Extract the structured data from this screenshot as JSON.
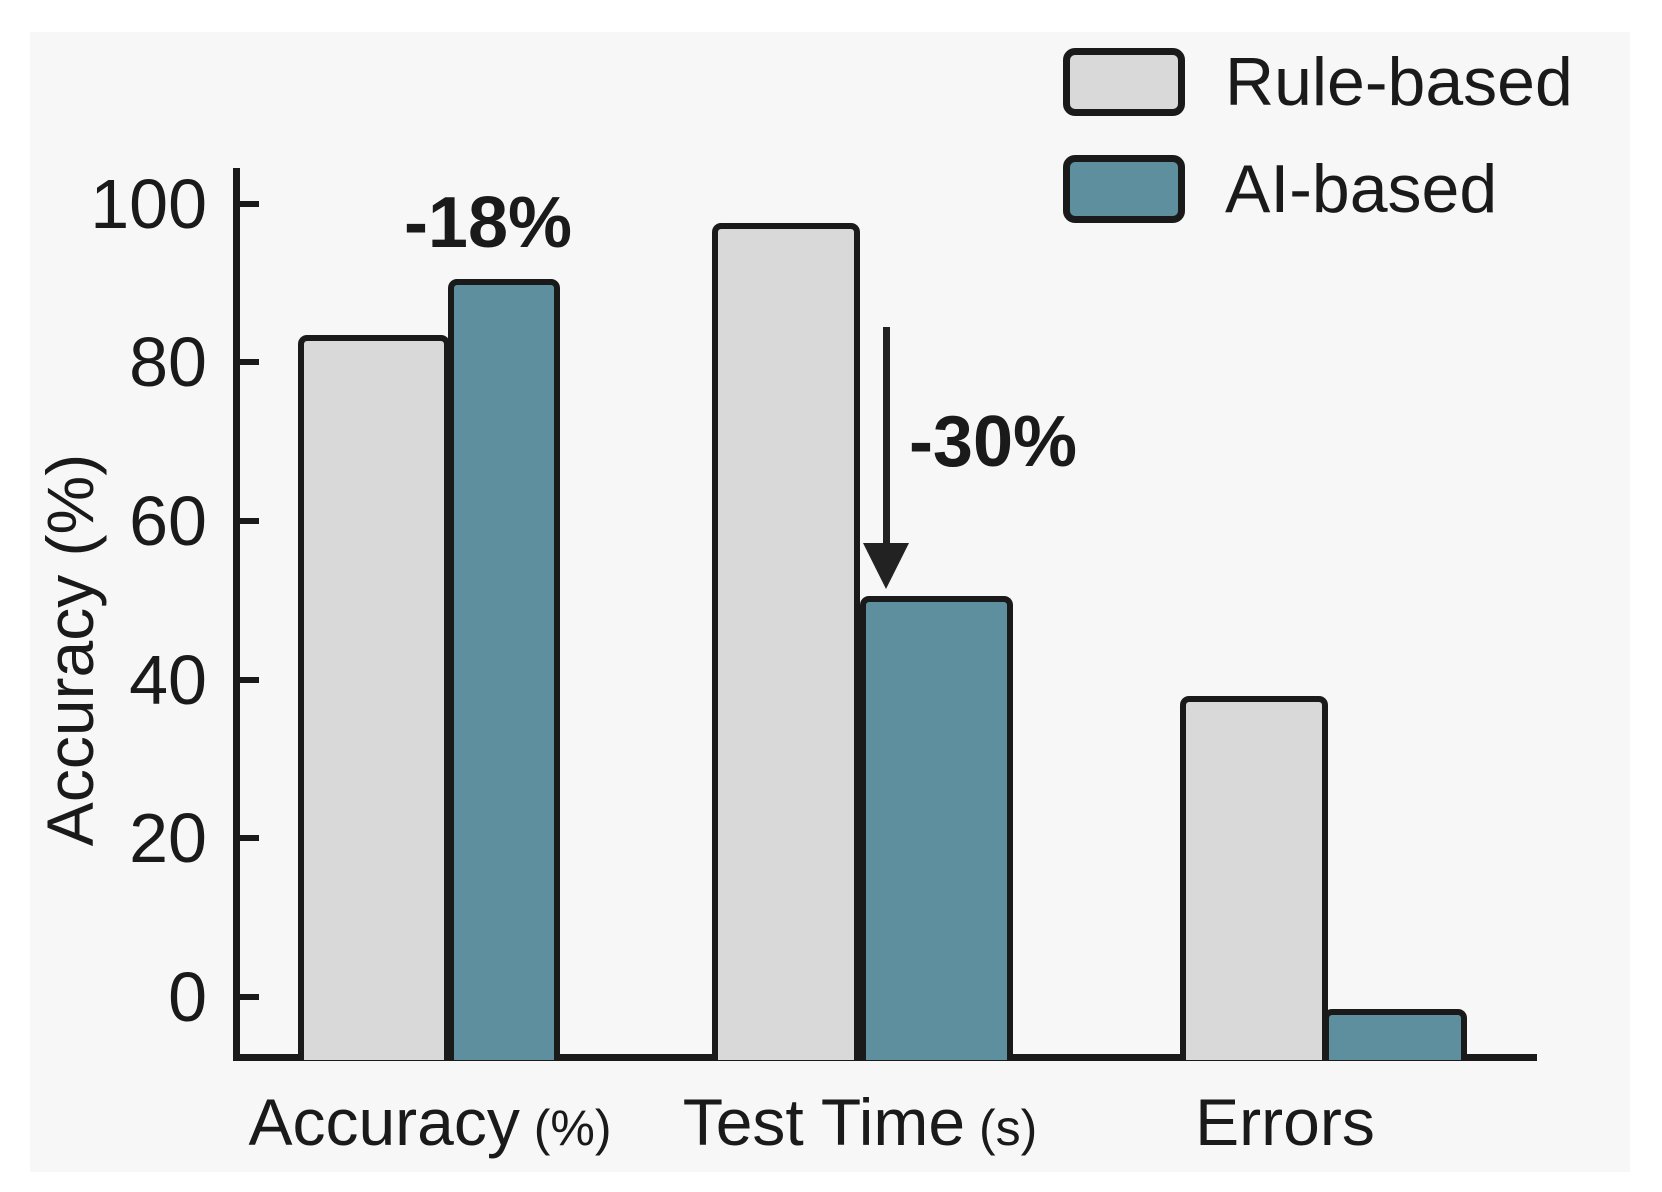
{
  "chart_data": {
    "type": "bar",
    "title": "",
    "ylabel": "Accuracy (%)",
    "categories": [
      {
        "label": "Accuracy",
        "suffix": "(%)"
      },
      {
        "label": "Test Time",
        "suffix": "(s)"
      },
      {
        "label": "Errors",
        "suffix": ""
      }
    ],
    "yticks": [
      0,
      20,
      40,
      60,
      80,
      100
    ],
    "ylim": [
      -7.5,
      104.5
    ],
    "grid": false,
    "legend_position": "top-right",
    "series": [
      {
        "name": "Rule-based",
        "color": "#d9d9d9",
        "values": [
          83.5,
          97.5,
          38
        ]
      },
      {
        "name": "AI-based",
        "color": "#5d8f9e",
        "values": [
          90.5,
          50.5,
          -1.5
        ]
      }
    ],
    "annotations": [
      {
        "text": "-18%",
        "category": "Accuracy",
        "series": "AI-based",
        "has_arrow": false
      },
      {
        "text": "-30%",
        "category": "Test Time",
        "series": "AI-based",
        "has_arrow": true
      }
    ]
  },
  "colors": {
    "bar_outline": "#1a1a1a",
    "axis": "#1a1a1a",
    "text": "#1a1a1a",
    "figure_background": "#f7f7f7",
    "rule_based_fill": "#d9d9d9",
    "ai_based_fill": "#5d8f9e"
  }
}
